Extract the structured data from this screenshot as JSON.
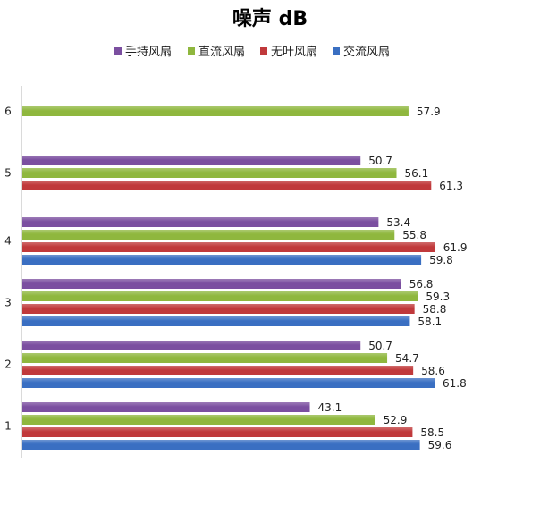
{
  "chart_data": {
    "type": "bar",
    "orientation": "horizontal",
    "title": "噪声 dB",
    "xlabel": "",
    "ylabel": "",
    "categories": [
      "1",
      "2",
      "3",
      "4",
      "5",
      "6"
    ],
    "xlim": [
      0,
      70
    ],
    "grid": false,
    "legend_position": "top",
    "series": [
      {
        "name": "手持风扇",
        "color": "#7b4fa0",
        "values": [
          43.1,
          50.7,
          56.8,
          53.4,
          50.7,
          null
        ]
      },
      {
        "name": "直流风扇",
        "color": "#8fb73e",
        "values": [
          52.9,
          54.7,
          59.3,
          55.8,
          56.1,
          57.9
        ]
      },
      {
        "name": "无叶风扇",
        "color": "#c0393b",
        "values": [
          58.5,
          58.6,
          58.8,
          61.9,
          61.3,
          null
        ]
      },
      {
        "name": "交流风扇",
        "color": "#3a6fc2",
        "values": [
          59.6,
          61.8,
          58.1,
          59.8,
          null,
          null
        ]
      }
    ]
  }
}
